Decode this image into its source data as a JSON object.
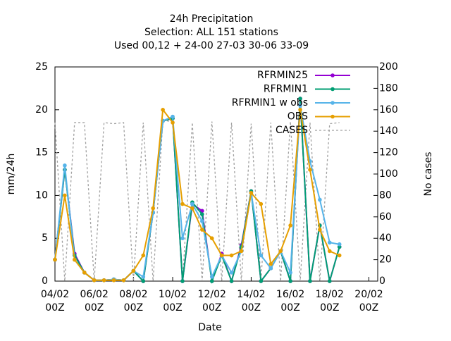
{
  "chart_data": {
    "type": "line",
    "title": [
      "24h Precipitation",
      "Selection: ALL    151 stations",
      "Used  00,12  + 24-00 27-03 30-06 33-09"
    ],
    "xlabel": "Date",
    "ylabel": "mm/24h",
    "y2label": "No cases",
    "x": [
      4,
      4.5,
      5,
      5.5,
      6,
      6.5,
      7,
      7.5,
      8,
      8.5,
      9,
      9.5,
      10,
      10.5,
      11,
      11.5,
      12,
      12.5,
      13,
      13.5,
      14,
      14.5,
      15,
      15.5,
      16,
      16.5,
      17,
      17.5,
      18,
      18.5
    ],
    "xlim": [
      4,
      20.45
    ],
    "xticks": [
      {
        "value": 4,
        "label": [
          "04/02",
          "00Z"
        ]
      },
      {
        "value": 6,
        "label": [
          "06/02",
          "00Z"
        ]
      },
      {
        "value": 8,
        "label": [
          "08/02",
          "00Z"
        ]
      },
      {
        "value": 10,
        "label": [
          "10/02",
          "00Z"
        ]
      },
      {
        "value": 12,
        "label": [
          "12/02",
          "00Z"
        ]
      },
      {
        "value": 14,
        "label": [
          "14/02",
          "00Z"
        ]
      },
      {
        "value": 16,
        "label": [
          "16/02",
          "00Z"
        ]
      },
      {
        "value": 18,
        "label": [
          "18/02",
          "00Z"
        ]
      },
      {
        "value": 20,
        "label": [
          "20/02",
          "00Z"
        ]
      }
    ],
    "ylim": [
      0,
      25
    ],
    "yticks": [
      0,
      5,
      10,
      15,
      20,
      25
    ],
    "y2lim": [
      0,
      200
    ],
    "y2ticks": [
      0,
      20,
      40,
      60,
      80,
      100,
      120,
      140,
      160,
      180,
      200
    ],
    "legend": "top-right",
    "series": [
      {
        "name": "CASES",
        "color": "#a0a0a0",
        "axis": "y2",
        "dashed": true,
        "values": [
          148,
          0,
          148,
          148,
          0,
          148,
          147,
          148,
          0,
          148,
          0,
          150,
          149,
          0,
          148,
          0,
          149,
          0,
          148,
          0,
          147,
          0,
          148,
          0,
          149,
          0,
          148,
          0,
          147,
          148
        ]
      },
      {
        "name": "RFRMIN25",
        "color": "#9400d3",
        "values": [
          2.5,
          13,
          3.2,
          1,
          0.1,
          0.1,
          0.2,
          0.1,
          1.2,
          0,
          8,
          18.7,
          19,
          0,
          9,
          8.2,
          0,
          3.2,
          0,
          4.2,
          10.5,
          0,
          1.5,
          3.5,
          0,
          21.3,
          0,
          6.5,
          0,
          4
        ]
      },
      {
        "name": "RFRMIN1",
        "color": "#009e73",
        "values": [
          2.5,
          13,
          3,
          1,
          0.1,
          0.1,
          0.2,
          0.1,
          1.2,
          0,
          8,
          18.7,
          19,
          0,
          9.2,
          7.8,
          0,
          3,
          0,
          4,
          10.5,
          0,
          1.5,
          3.5,
          0,
          21.3,
          0,
          6.5,
          0,
          4
        ]
      },
      {
        "name": "RFRMIN1 w obs",
        "color": "#56b4e9",
        "values": [
          2.5,
          13.5,
          2.5,
          1,
          0.1,
          0.1,
          0.2,
          0.1,
          1.2,
          0.5,
          8,
          18.7,
          19.2,
          5,
          9,
          7,
          0.5,
          3,
          1,
          3.5,
          10.3,
          3,
          1.5,
          3.5,
          1,
          20.5,
          14,
          9.5,
          4.5,
          4.3
        ]
      },
      {
        "name": "OBS",
        "color": "#e69f00",
        "values": [
          2.5,
          10,
          2.5,
          1,
          0.1,
          0.1,
          0.1,
          0.1,
          1.2,
          3,
          8.5,
          20,
          18.5,
          9,
          8.5,
          6,
          5,
          3,
          3,
          3.5,
          10.3,
          9,
          2,
          3.5,
          6.5,
          20,
          13,
          6,
          3.5,
          3
        ]
      }
    ]
  }
}
